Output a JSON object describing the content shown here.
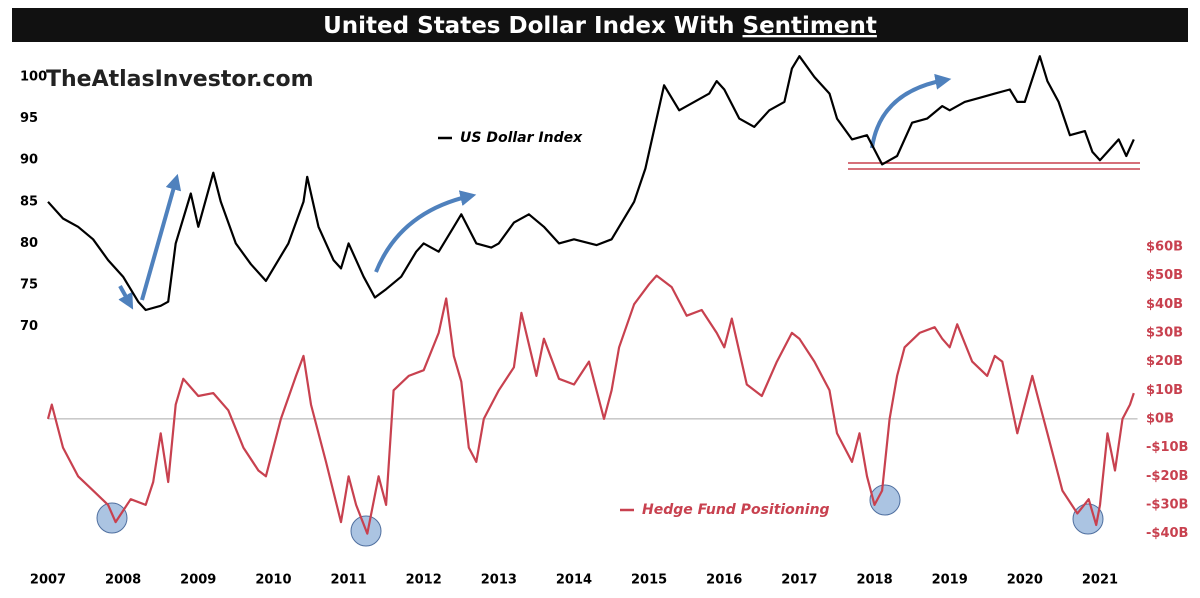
{
  "chart_data": {
    "type": "line",
    "title": "United States Dollar Index With",
    "title_emphasis": "Sentiment",
    "watermark": "TheAtlasInvestor.com",
    "xlim": [
      2007,
      2021.5
    ],
    "xticks": [
      2007,
      2008,
      2009,
      2010,
      2011,
      2012,
      2013,
      2014,
      2015,
      2016,
      2017,
      2018,
      2019,
      2020,
      2021
    ],
    "ylim": [
      41,
      103
    ],
    "yticks": [
      70,
      75,
      80,
      85,
      90,
      95,
      100
    ],
    "y2lim": [
      -52,
      128
    ],
    "y2ticks": [
      {
        "value": -40,
        "label": "-$40B"
      },
      {
        "value": -30,
        "label": "-$30B"
      },
      {
        "value": -20,
        "label": "-$20B"
      },
      {
        "value": -10,
        "label": "-$10B"
      },
      {
        "value": 0,
        "label": "$0B"
      },
      {
        "value": 10,
        "label": "$10B"
      },
      {
        "value": 20,
        "label": "$20B"
      },
      {
        "value": 30,
        "label": "$30B"
      },
      {
        "value": 40,
        "label": "$40B"
      },
      {
        "value": 50,
        "label": "$50B"
      },
      {
        "value": 60,
        "label": "$60B"
      }
    ],
    "series": [
      {
        "name": "US Dollar Index",
        "color": "#000000",
        "axis": "y",
        "x": [
          2007.0,
          2007.2,
          2007.4,
          2007.6,
          2007.8,
          2008.0,
          2008.2,
          2008.3,
          2008.5,
          2008.6,
          2008.7,
          2008.9,
          2009.0,
          2009.2,
          2009.3,
          2009.5,
          2009.7,
          2009.9,
          2010.0,
          2010.2,
          2010.4,
          2010.45,
          2010.6,
          2010.8,
          2010.9,
          2011.0,
          2011.2,
          2011.35,
          2011.5,
          2011.7,
          2011.9,
          2012.0,
          2012.2,
          2012.4,
          2012.5,
          2012.7,
          2012.9,
          2013.0,
          2013.2,
          2013.4,
          2013.6,
          2013.8,
          2014.0,
          2014.3,
          2014.5,
          2014.6,
          2014.8,
          2014.95,
          2015.1,
          2015.2,
          2015.4,
          2015.6,
          2015.8,
          2015.9,
          2016.0,
          2016.2,
          2016.4,
          2016.6,
          2016.8,
          2016.9,
          2017.0,
          2017.2,
          2017.4,
          2017.5,
          2017.7,
          2017.9,
          2018.1,
          2018.2,
          2018.3,
          2018.5,
          2018.7,
          2018.9,
          2019.0,
          2019.2,
          2019.4,
          2019.6,
          2019.8,
          2019.9,
          2020.0,
          2020.2,
          2020.3,
          2020.45,
          2020.6,
          2020.8,
          2020.9,
          2021.0,
          2021.1,
          2021.25,
          2021.35,
          2021.45
        ],
        "values": [
          85,
          83,
          82,
          80.5,
          78,
          76,
          73,
          72,
          72.5,
          73,
          80,
          86,
          82,
          88.5,
          85,
          80,
          77.5,
          75.5,
          77,
          80,
          85,
          88,
          82,
          78,
          77,
          80,
          76,
          73.5,
          74.5,
          76,
          79,
          80,
          79,
          82,
          83.5,
          80,
          79.5,
          80,
          82.5,
          83.5,
          82,
          80,
          80.5,
          79.8,
          80.5,
          82,
          85,
          89,
          95,
          99,
          96,
          97,
          98,
          99.5,
          98.5,
          95,
          94,
          96,
          97,
          101,
          102.5,
          100,
          98,
          95,
          92.5,
          93,
          89.5,
          90,
          90.5,
          94.5,
          95,
          96.5,
          96,
          97,
          97.5,
          98,
          98.5,
          97,
          97,
          102.5,
          99.5,
          97,
          93,
          93.5,
          91,
          90,
          91,
          92.5,
          90.5,
          92.5
        ]
      },
      {
        "name": "Hedge Fund Positioning",
        "color": "#c8414f",
        "axis": "y2",
        "x": [
          2007.0,
          2007.05,
          2007.2,
          2007.4,
          2007.6,
          2007.8,
          2007.9,
          2008.1,
          2008.3,
          2008.4,
          2008.5,
          2008.6,
          2008.7,
          2008.8,
          2009.0,
          2009.2,
          2009.4,
          2009.6,
          2009.8,
          2009.9,
          2010.1,
          2010.3,
          2010.4,
          2010.5,
          2010.7,
          2010.9,
          2011.0,
          2011.1,
          2011.25,
          2011.4,
          2011.5,
          2011.6,
          2011.8,
          2012.0,
          2012.2,
          2012.3,
          2012.4,
          2012.5,
          2012.6,
          2012.7,
          2012.8,
          2013.0,
          2013.2,
          2013.3,
          2013.5,
          2013.6,
          2013.8,
          2014.0,
          2014.2,
          2014.4,
          2014.5,
          2014.6,
          2014.8,
          2015.0,
          2015.1,
          2015.3,
          2015.5,
          2015.7,
          2015.9,
          2016.0,
          2016.1,
          2016.3,
          2016.5,
          2016.7,
          2016.9,
          2017.0,
          2017.2,
          2017.4,
          2017.5,
          2017.7,
          2017.8,
          2017.9,
          2018.0,
          2018.1,
          2018.2,
          2018.3,
          2018.4,
          2018.6,
          2018.8,
          2018.9,
          2019.0,
          2019.1,
          2019.3,
          2019.5,
          2019.6,
          2019.7,
          2019.9,
          2020.1,
          2020.2,
          2020.3,
          2020.5,
          2020.7,
          2020.85,
          2020.95,
          2021.0,
          2021.1,
          2021.2,
          2021.3,
          2021.4,
          2021.45
        ],
        "values": [
          0,
          5,
          -10,
          -20,
          -25,
          -30,
          -36,
          -28,
          -30,
          -22,
          -5,
          -22,
          5,
          14,
          8,
          9,
          3,
          -10,
          -18,
          -20,
          0,
          15,
          22,
          5,
          -15,
          -36,
          -20,
          -30,
          -40,
          -20,
          -30,
          10,
          15,
          17,
          30,
          42,
          22,
          13,
          -10,
          -15,
          0,
          10,
          18,
          37,
          15,
          28,
          14,
          12,
          20,
          0,
          10,
          25,
          40,
          47,
          50,
          46,
          36,
          38,
          30,
          25,
          35,
          12,
          8,
          20,
          30,
          28,
          20,
          10,
          -5,
          -15,
          -5,
          -20,
          -30,
          -25,
          0,
          15,
          25,
          30,
          32,
          28,
          25,
          33,
          20,
          15,
          22,
          20,
          -5,
          15,
          5,
          -5,
          -25,
          -33,
          -28,
          -37,
          -30,
          -5,
          -18,
          0,
          5,
          9
        ]
      }
    ]
  }
}
